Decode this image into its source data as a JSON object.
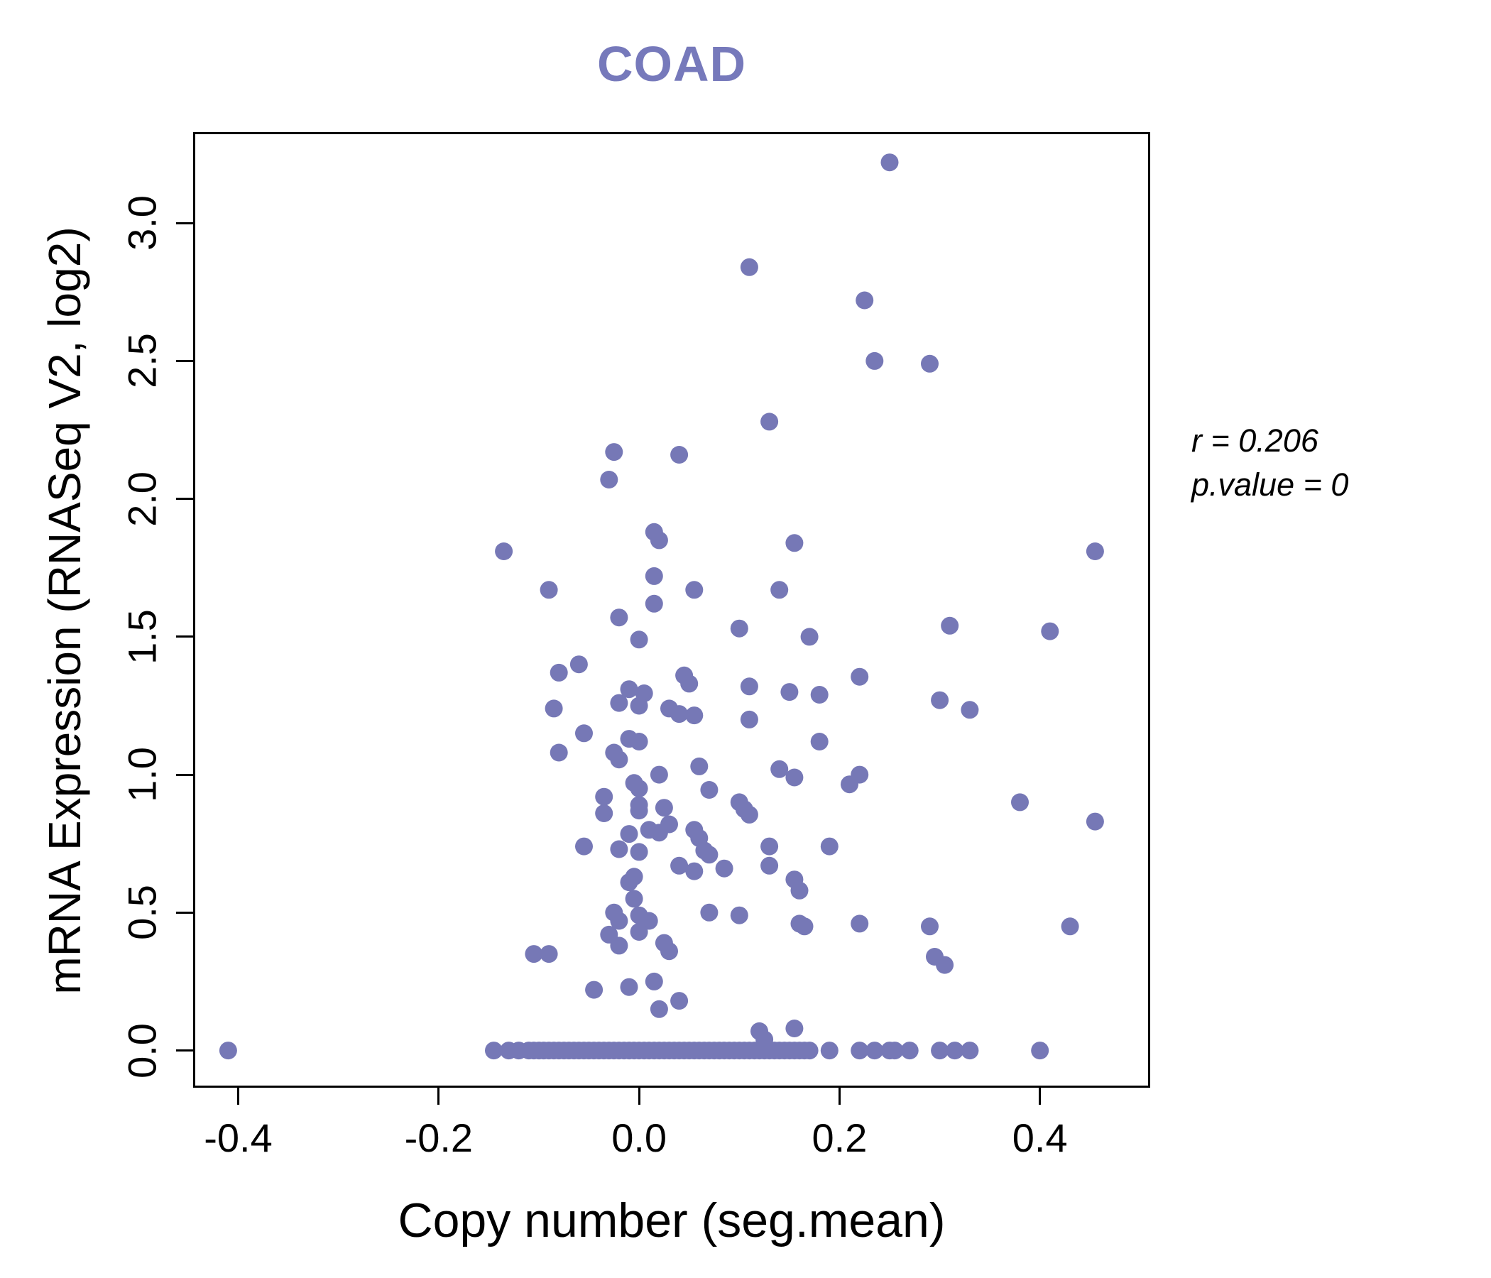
{
  "colors": {
    "point": "#7678b6",
    "title": "#7679bb",
    "axis": "#000000"
  },
  "chart_data": {
    "type": "scatter",
    "title": "COAD",
    "xlabel": "Copy number (seg.mean)",
    "ylabel": "mRNA Expression (RNASeq V2, log2)",
    "xlim": [
      -0.445,
      0.51
    ],
    "ylim": [
      -0.135,
      3.33
    ],
    "grid": false,
    "legend": "none",
    "annotations": [
      "r = 0.206",
      "p.value = 0"
    ],
    "x_ticks": [
      {
        "value": -0.4,
        "label": "-0.4"
      },
      {
        "value": -0.2,
        "label": "-0.2"
      },
      {
        "value": 0.0,
        "label": "0.0"
      },
      {
        "value": 0.2,
        "label": "0.2"
      },
      {
        "value": 0.4,
        "label": "0.4"
      }
    ],
    "y_ticks": [
      {
        "value": 0.0,
        "label": "0.0"
      },
      {
        "value": 0.5,
        "label": "0.5"
      },
      {
        "value": 1.0,
        "label": "1.0"
      },
      {
        "value": 1.5,
        "label": "1.5"
      },
      {
        "value": 2.0,
        "label": "2.0"
      },
      {
        "value": 2.5,
        "label": "2.5"
      },
      {
        "value": 3.0,
        "label": "3.0"
      }
    ],
    "points": [
      [
        0.25,
        3.22
      ],
      [
        0.11,
        2.84
      ],
      [
        0.225,
        2.72
      ],
      [
        0.235,
        2.5
      ],
      [
        0.29,
        2.49
      ],
      [
        0.13,
        2.28
      ],
      [
        -0.025,
        2.17
      ],
      [
        0.04,
        2.16
      ],
      [
        -0.03,
        2.07
      ],
      [
        0.015,
        1.88
      ],
      [
        0.02,
        1.85
      ],
      [
        0.155,
        1.84
      ],
      [
        -0.135,
        1.81
      ],
      [
        0.455,
        1.81
      ],
      [
        0.015,
        1.72
      ],
      [
        -0.09,
        1.67
      ],
      [
        0.055,
        1.67
      ],
      [
        0.14,
        1.67
      ],
      [
        0.015,
        1.62
      ],
      [
        -0.02,
        1.57
      ],
      [
        0.31,
        1.54
      ],
      [
        0.1,
        1.53
      ],
      [
        0.41,
        1.52
      ],
      [
        0.17,
        1.5
      ],
      [
        0.0,
        1.49
      ],
      [
        -0.06,
        1.4
      ],
      [
        -0.08,
        1.37
      ],
      [
        0.045,
        1.36
      ],
      [
        0.22,
        1.355
      ],
      [
        0.05,
        1.33
      ],
      [
        0.11,
        1.32
      ],
      [
        -0.01,
        1.31
      ],
      [
        0.15,
        1.3
      ],
      [
        0.005,
        1.295
      ],
      [
        0.18,
        1.29
      ],
      [
        0.3,
        1.27
      ],
      [
        -0.02,
        1.26
      ],
      [
        0.0,
        1.25
      ],
      [
        -0.085,
        1.24
      ],
      [
        0.03,
        1.24
      ],
      [
        0.33,
        1.235
      ],
      [
        0.04,
        1.22
      ],
      [
        0.055,
        1.215
      ],
      [
        0.11,
        1.2
      ],
      [
        -0.055,
        1.15
      ],
      [
        -0.01,
        1.13
      ],
      [
        0.0,
        1.12
      ],
      [
        0.18,
        1.12
      ],
      [
        -0.08,
        1.08
      ],
      [
        -0.025,
        1.08
      ],
      [
        -0.02,
        1.055
      ],
      [
        0.06,
        1.03
      ],
      [
        0.14,
        1.02
      ],
      [
        0.02,
        1.0
      ],
      [
        0.22,
        1.0
      ],
      [
        0.155,
        0.99
      ],
      [
        -0.005,
        0.97
      ],
      [
        0.21,
        0.965
      ],
      [
        0.0,
        0.95
      ],
      [
        0.07,
        0.945
      ],
      [
        -0.035,
        0.92
      ],
      [
        0.1,
        0.9
      ],
      [
        0.38,
        0.9
      ],
      [
        0.0,
        0.89
      ],
      [
        0.025,
        0.88
      ],
      [
        0.105,
        0.875
      ],
      [
        0.0,
        0.87
      ],
      [
        -0.035,
        0.86
      ],
      [
        0.11,
        0.855
      ],
      [
        0.455,
        0.83
      ],
      [
        0.03,
        0.82
      ],
      [
        0.01,
        0.8
      ],
      [
        0.055,
        0.8
      ],
      [
        0.02,
        0.79
      ],
      [
        -0.01,
        0.785
      ],
      [
        0.06,
        0.77
      ],
      [
        0.13,
        0.74
      ],
      [
        -0.055,
        0.74
      ],
      [
        0.19,
        0.74
      ],
      [
        -0.02,
        0.73
      ],
      [
        0.065,
        0.725
      ],
      [
        0.0,
        0.72
      ],
      [
        0.07,
        0.71
      ],
      [
        0.04,
        0.67
      ],
      [
        0.13,
        0.67
      ],
      [
        0.085,
        0.66
      ],
      [
        0.055,
        0.65
      ],
      [
        -0.005,
        0.63
      ],
      [
        -0.01,
        0.61
      ],
      [
        0.155,
        0.62
      ],
      [
        0.16,
        0.58
      ],
      [
        -0.005,
        0.55
      ],
      [
        -0.025,
        0.5
      ],
      [
        0.07,
        0.5
      ],
      [
        0.0,
        0.49
      ],
      [
        0.1,
        0.49
      ],
      [
        -0.02,
        0.47
      ],
      [
        0.01,
        0.47
      ],
      [
        0.16,
        0.46
      ],
      [
        0.22,
        0.46
      ],
      [
        0.165,
        0.45
      ],
      [
        0.29,
        0.45
      ],
      [
        0.43,
        0.45
      ],
      [
        0.0,
        0.43
      ],
      [
        -0.03,
        0.42
      ],
      [
        0.025,
        0.39
      ],
      [
        -0.02,
        0.38
      ],
      [
        0.03,
        0.36
      ],
      [
        -0.105,
        0.35
      ],
      [
        -0.09,
        0.35
      ],
      [
        0.295,
        0.34
      ],
      [
        0.305,
        0.31
      ],
      [
        0.015,
        0.25
      ],
      [
        -0.01,
        0.23
      ],
      [
        -0.045,
        0.22
      ],
      [
        0.04,
        0.18
      ],
      [
        0.02,
        0.15
      ],
      [
        0.155,
        0.08
      ],
      [
        0.12,
        0.07
      ],
      [
        0.125,
        0.04
      ],
      [
        -0.41,
        0
      ],
      [
        -0.145,
        0
      ],
      [
        -0.13,
        0
      ],
      [
        -0.12,
        0
      ],
      [
        -0.11,
        0
      ],
      [
        -0.105,
        0
      ],
      [
        -0.1,
        0
      ],
      [
        -0.095,
        0
      ],
      [
        -0.09,
        0
      ],
      [
        -0.085,
        0
      ],
      [
        -0.08,
        0
      ],
      [
        -0.075,
        0
      ],
      [
        -0.07,
        0
      ],
      [
        -0.065,
        0
      ],
      [
        -0.06,
        0
      ],
      [
        -0.055,
        0
      ],
      [
        -0.05,
        0
      ],
      [
        -0.045,
        0
      ],
      [
        -0.04,
        0
      ],
      [
        -0.035,
        0
      ],
      [
        -0.03,
        0
      ],
      [
        -0.025,
        0
      ],
      [
        -0.02,
        0
      ],
      [
        -0.015,
        0
      ],
      [
        -0.01,
        0
      ],
      [
        -0.005,
        0
      ],
      [
        0.0,
        0
      ],
      [
        0.005,
        0
      ],
      [
        0.01,
        0
      ],
      [
        0.015,
        0
      ],
      [
        0.02,
        0
      ],
      [
        0.025,
        0
      ],
      [
        0.03,
        0
      ],
      [
        0.035,
        0
      ],
      [
        0.04,
        0
      ],
      [
        0.045,
        0
      ],
      [
        0.05,
        0
      ],
      [
        0.055,
        0
      ],
      [
        0.06,
        0
      ],
      [
        0.065,
        0
      ],
      [
        0.07,
        0
      ],
      [
        0.075,
        0
      ],
      [
        0.08,
        0
      ],
      [
        0.085,
        0
      ],
      [
        0.09,
        0
      ],
      [
        0.095,
        0
      ],
      [
        0.1,
        0
      ],
      [
        0.105,
        0
      ],
      [
        0.11,
        0
      ],
      [
        0.115,
        0
      ],
      [
        0.12,
        0
      ],
      [
        0.125,
        0
      ],
      [
        0.13,
        0
      ],
      [
        0.135,
        0
      ],
      [
        0.14,
        0
      ],
      [
        0.145,
        0
      ],
      [
        0.15,
        0
      ],
      [
        0.155,
        0
      ],
      [
        0.16,
        0
      ],
      [
        0.165,
        0
      ],
      [
        0.17,
        0
      ],
      [
        0.19,
        0
      ],
      [
        0.22,
        0
      ],
      [
        0.235,
        0
      ],
      [
        0.25,
        0
      ],
      [
        0.255,
        0
      ],
      [
        0.27,
        0
      ],
      [
        0.3,
        0
      ],
      [
        0.315,
        0
      ],
      [
        0.33,
        0
      ],
      [
        0.4,
        0
      ]
    ]
  }
}
